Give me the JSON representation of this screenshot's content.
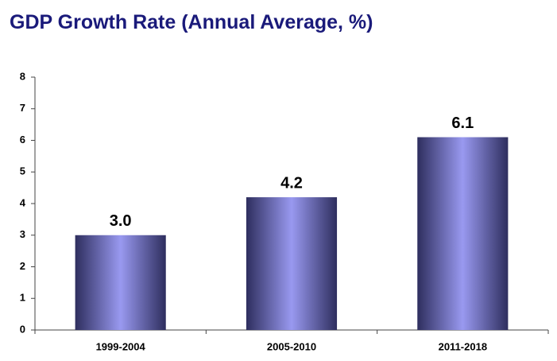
{
  "chart_data": {
    "type": "bar",
    "title": "GDP Growth Rate (Annual Average, %)",
    "categories": [
      "1999-2004",
      "2005-2010",
      "2011-2018"
    ],
    "values": [
      3.0,
      4.2,
      6.1
    ],
    "value_labels": [
      "3.0",
      "4.2",
      "6.1"
    ],
    "color": "#9999f0",
    "ylim": [
      0,
      8
    ],
    "yticks": [
      0,
      1,
      2,
      3,
      4,
      5,
      6,
      7,
      8
    ],
    "grid": false
  }
}
